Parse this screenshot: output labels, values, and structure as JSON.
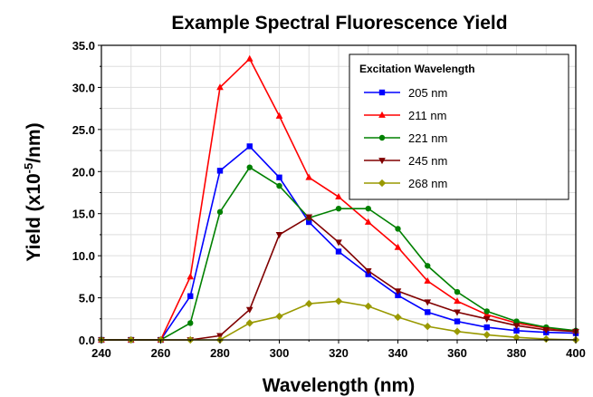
{
  "chart_data": {
    "type": "line",
    "title": "Example Spectral Fluorescence Yield",
    "xlabel": "Wavelength (nm)",
    "ylabel_main": "Yield (x10",
    "ylabel_sup": "-5",
    "ylabel_end": "/nm)",
    "xlim": [
      240,
      400
    ],
    "ylim": [
      0,
      35
    ],
    "xticks": [
      "240",
      "260",
      "280",
      "300",
      "320",
      "340",
      "360",
      "380",
      "400"
    ],
    "yticks": [
      "0.0",
      "5.0",
      "10.0",
      "15.0",
      "20.0",
      "25.0",
      "30.0",
      "35.0"
    ],
    "grid": true,
    "legend_title": "Excitation Wavelength",
    "legend_position": "top-right",
    "x": [
      240,
      250,
      260,
      270,
      280,
      290,
      300,
      310,
      320,
      330,
      340,
      350,
      360,
      370,
      380,
      390,
      400
    ],
    "series": [
      {
        "name": "205 nm",
        "color": "#0000ff",
        "marker": "square",
        "values": [
          0,
          0,
          0,
          5.2,
          20.1,
          23.0,
          19.3,
          14.0,
          10.5,
          7.8,
          5.3,
          3.3,
          2.2,
          1.5,
          1.1,
          0.9,
          0.8
        ]
      },
      {
        "name": "211 nm",
        "color": "#ff0000",
        "marker": "triangle-up",
        "values": [
          0,
          0,
          0,
          7.5,
          30.0,
          33.4,
          26.6,
          19.3,
          17.0,
          14.0,
          11.0,
          7.0,
          4.6,
          3.0,
          2.0,
          1.4,
          1.1
        ]
      },
      {
        "name": "221 nm",
        "color": "#008000",
        "marker": "circle",
        "values": [
          0,
          0,
          0,
          2.0,
          15.2,
          20.5,
          18.3,
          14.5,
          15.6,
          15.6,
          13.2,
          8.8,
          5.7,
          3.4,
          2.2,
          1.5,
          1.1
        ]
      },
      {
        "name": "245 nm",
        "color": "#800000",
        "marker": "triangle-down",
        "values": [
          0,
          0,
          0,
          0,
          0.5,
          3.6,
          12.5,
          14.6,
          11.6,
          8.2,
          5.8,
          4.5,
          3.3,
          2.5,
          1.7,
          1.2,
          1.0
        ]
      },
      {
        "name": "268 nm",
        "color": "#999900",
        "marker": "diamond",
        "values": [
          0,
          0,
          0,
          0,
          0,
          2.0,
          2.8,
          4.3,
          4.6,
          4.0,
          2.7,
          1.6,
          1.0,
          0.6,
          0.3,
          0.1,
          0.0
        ]
      }
    ]
  }
}
